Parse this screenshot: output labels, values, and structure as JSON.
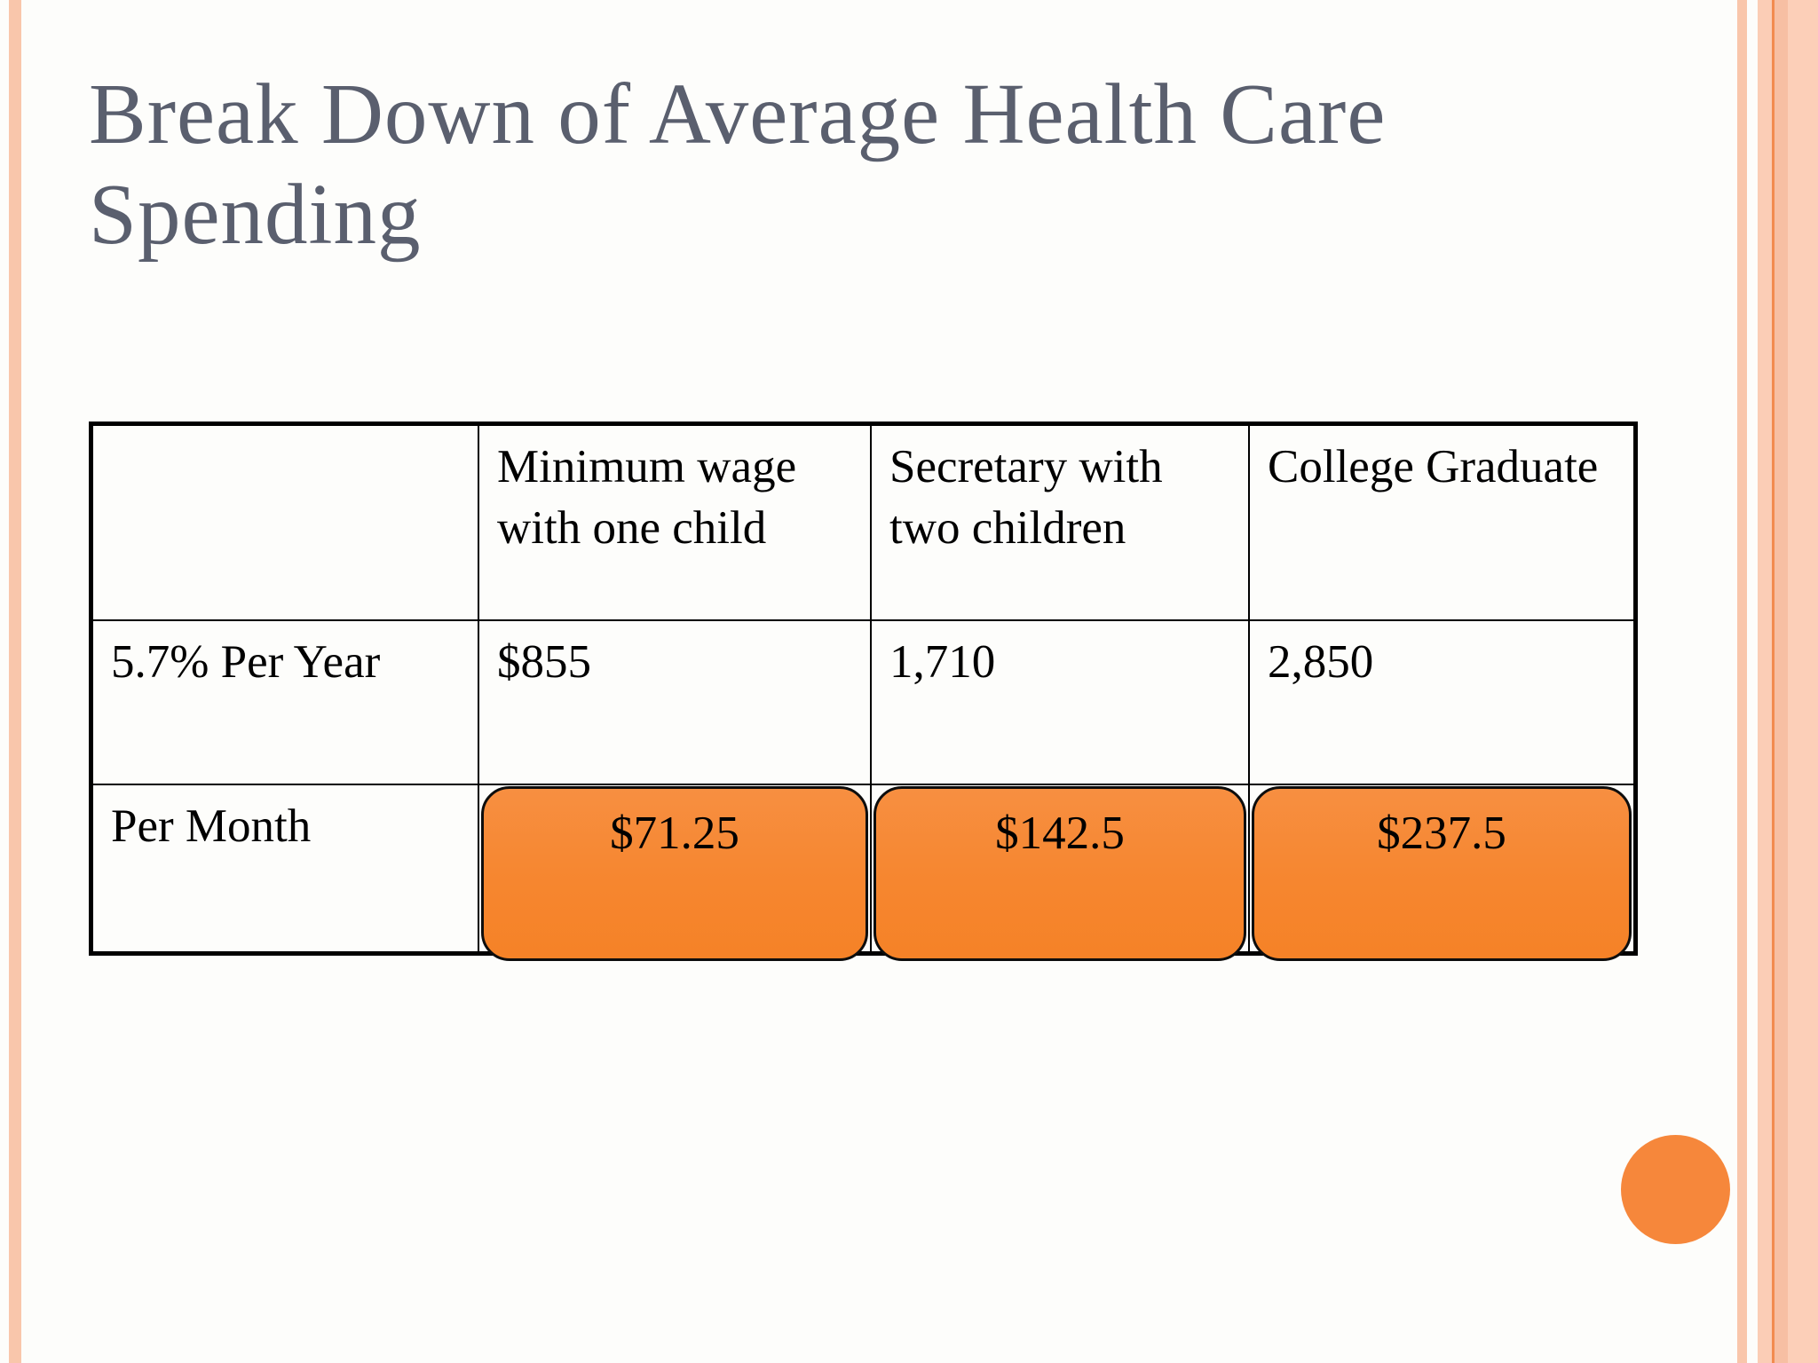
{
  "slide": {
    "title": "Break Down of Average Health Care Spending",
    "title_lines": [
      "Break Down of Average Health Care",
      "Spending"
    ]
  },
  "table": {
    "headers": [
      "",
      "Minimum wage with one child",
      "Secretary with two children",
      "College Graduate"
    ],
    "rows": [
      {
        "label": "5.7% Per Year",
        "values": [
          "$855",
          "1,710",
          "2,850"
        ]
      },
      {
        "label": "Per Month",
        "values": [
          "$71.25",
          "$142.5",
          "$237.5"
        ]
      }
    ]
  },
  "chart_data": {
    "type": "table",
    "title": "Break Down of Average Health Care Spending",
    "columns": [
      "Minimum wage with one child",
      "Secretary with two children",
      "College Graduate"
    ],
    "rows": [
      {
        "label": "5.7% Per Year",
        "values": [
          855,
          1710,
          2850
        ]
      },
      {
        "label": "Per Month",
        "values": [
          71.25,
          142.5,
          237.5
        ]
      }
    ]
  },
  "colors": {
    "accent_orange": "#F6862F",
    "stripe_peach": "#F9C6AB",
    "stripe_dark_line": "#F28B50",
    "title_gray": "#5A5F6E",
    "table_border": "#000000"
  }
}
